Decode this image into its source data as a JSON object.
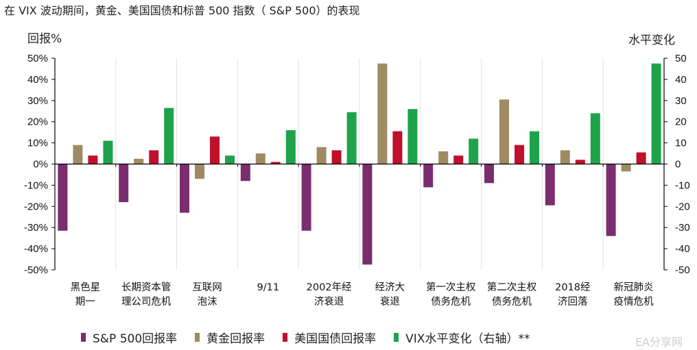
{
  "title": "在 VIX 波动期间，黄金、美国国债和标普 500 指数（ S&P 500）的表现",
  "watermark": "EA分享网",
  "chart_data": {
    "type": "bar",
    "title": "在 VIX 波动期间，黄金、美国国债和标普 500 指数（ S&P 500）的表现",
    "ylabel_left": "回报%",
    "ylabel_right": "水平变化",
    "ylim_left": [
      -50,
      50
    ],
    "ylim_right": [
      -50,
      50
    ],
    "yticks_left": [
      "50%",
      "40%",
      "30%",
      "20%",
      "10%",
      "0%",
      "-10%",
      "-20%",
      "-30%",
      "-40%",
      "-50%"
    ],
    "yticks_right": [
      "50",
      "40",
      "30",
      "20",
      "10",
      "0",
      "-10",
      "-20",
      "-30",
      "-40",
      "-50"
    ],
    "grid": false,
    "legend_position": "bottom",
    "categories": [
      [
        "黑色星",
        "期一"
      ],
      [
        "长期资本管",
        "理公司危机"
      ],
      [
        "互联网",
        "泡沫"
      ],
      [
        "9/11"
      ],
      [
        "2002年经",
        "济衰退"
      ],
      [
        "经济大",
        "衰退"
      ],
      [
        "第一次主权",
        "债务危机"
      ],
      [
        "第二次主权",
        "债务危机"
      ],
      [
        "2018经",
        "济回落"
      ],
      [
        "新冠肺炎",
        "疫情危机"
      ]
    ],
    "series": [
      {
        "name": "S&P 500回报率",
        "color": "#7b2d6e",
        "axis": "left",
        "values": [
          -31.5,
          -18,
          -23,
          -8,
          -31.5,
          -47.5,
          -11,
          -9,
          -19.5,
          -34
        ]
      },
      {
        "name": "黄金回报率",
        "color": "#a08a62",
        "axis": "left",
        "values": [
          9,
          2.5,
          -7,
          5,
          8,
          47.5,
          6,
          30.5,
          6.5,
          -3.5
        ]
      },
      {
        "name": "美国国债回报率",
        "color": "#c0102c",
        "axis": "left",
        "values": [
          4,
          6.5,
          13,
          1,
          6.5,
          15.5,
          4,
          9,
          2,
          5.5
        ]
      },
      {
        "name": "VIX水平变化（右轴）**",
        "color": "#1ea34a",
        "axis": "right",
        "values": [
          11,
          26.5,
          4,
          16,
          24.5,
          26,
          12,
          15.5,
          24,
          47.5
        ]
      }
    ]
  }
}
